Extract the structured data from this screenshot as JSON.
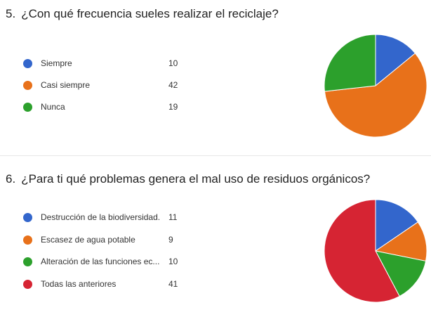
{
  "chart_data": [
    {
      "type": "pie",
      "number": "5.",
      "title": "¿Con qué frecuencia sueles realizar el reciclaje?",
      "categories": [
        "Siempre",
        "Casi siempre",
        "Nunca"
      ],
      "values": [
        10,
        42,
        19
      ],
      "colors": [
        "#3366cc",
        "#e8711a",
        "#2ca02c"
      ],
      "legend": "left"
    },
    {
      "type": "pie",
      "number": "6.",
      "title": "¿Para ti qué problemas genera el mal uso de residuos orgánicos?",
      "categories": [
        "Destrucción de la biodiversidad.",
        "Escasez de agua potable",
        "Alteración de las funciones ec...",
        "Todas las anteriores"
      ],
      "values": [
        11,
        9,
        10,
        41
      ],
      "colors": [
        "#3366cc",
        "#e8711a",
        "#2ca02c",
        "#d62433"
      ],
      "legend": "left"
    }
  ]
}
